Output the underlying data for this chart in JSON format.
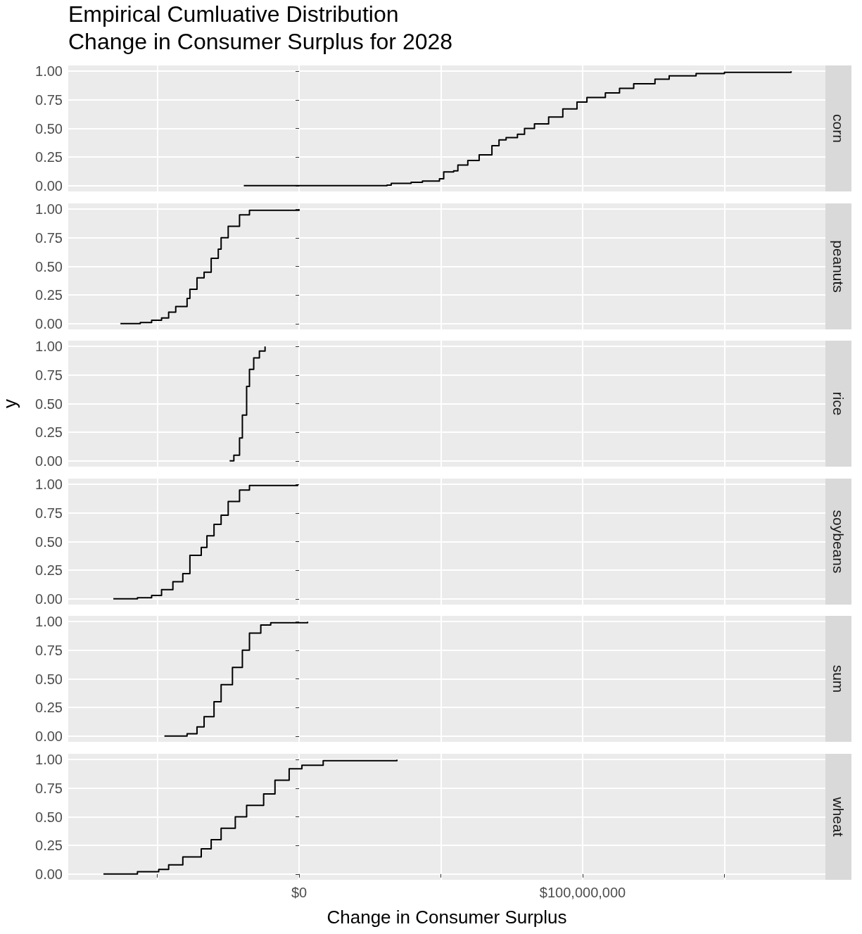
{
  "chart_data": [
    {
      "type": "step",
      "title": "corn",
      "annotations": [
        "Empirical Cumluative Distribution",
        "Change in Consumer Surplus for 2028"
      ],
      "xlim": [
        -81400000,
        185600000
      ],
      "xticks": [
        {
          "value": -50000000,
          "label": null
        },
        {
          "value": 0,
          "label": null
        },
        {
          "value": 50000000,
          "label": null
        },
        {
          "value": 100000000,
          "label": null
        },
        {
          "value": 150000000,
          "label": null
        }
      ],
      "ylim": [
        -0.05,
        1.05
      ],
      "yticks": [
        {
          "value": 0,
          "label": "0.00"
        },
        {
          "value": 0.25,
          "label": "0.25"
        },
        {
          "value": 0.5,
          "label": "0.50"
        },
        {
          "value": 0.75,
          "label": "0.75"
        },
        {
          "value": 1,
          "label": "1.00"
        }
      ],
      "grid": true,
      "tick_labels": "y",
      "series": [
        {
          "color": "#000000",
          "x": [
            -19500000,
            31000000,
            32500000,
            39500000,
            43500000,
            49500000,
            51000000,
            54500000,
            56000000,
            59500000,
            63500000,
            68000000,
            70500000,
            73000000,
            77000000,
            79500000,
            83000000,
            88000000,
            93000000,
            98000000,
            101500000,
            108000000,
            113000000,
            118000000,
            125500000,
            130500000,
            140000000,
            150000000,
            173500000
          ],
          "values": [
            0,
            0.005,
            0.02,
            0.03,
            0.04,
            0.06,
            0.12,
            0.13,
            0.18,
            0.22,
            0.27,
            0.35,
            0.4,
            0.42,
            0.45,
            0.5,
            0.54,
            0.6,
            0.67,
            0.73,
            0.77,
            0.81,
            0.85,
            0.89,
            0.93,
            0.96,
            0.98,
            0.99,
            1
          ]
        }
      ]
    },
    {
      "type": "step",
      "title": "peanuts",
      "xlim": [
        -81400000,
        185600000
      ],
      "xticks": [
        {
          "value": -50000000,
          "label": null
        },
        {
          "value": 0,
          "label": null
        },
        {
          "value": 50000000,
          "label": null
        },
        {
          "value": 100000000,
          "label": null
        },
        {
          "value": 150000000,
          "label": null
        }
      ],
      "ylim": [
        -0.05,
        1.05
      ],
      "yticks": [
        {
          "value": 0,
          "label": "0.00"
        },
        {
          "value": 0.25,
          "label": "0.25"
        },
        {
          "value": 0.5,
          "label": "0.50"
        },
        {
          "value": 0.75,
          "label": "0.75"
        },
        {
          "value": 1,
          "label": "1.00"
        }
      ],
      "grid": true,
      "tick_labels": "y",
      "series": [
        {
          "color": "#000000",
          "x": [
            -63000000,
            -56000000,
            -52000000,
            -48500000,
            -46000000,
            -43500000,
            -39500000,
            -38500000,
            -36000000,
            -33500000,
            -31000000,
            -28500000,
            -27500000,
            -25000000,
            -21000000,
            -17500000,
            0
          ],
          "values": [
            0,
            0.01,
            0.03,
            0.05,
            0.1,
            0.15,
            0.22,
            0.3,
            0.4,
            0.45,
            0.57,
            0.65,
            0.75,
            0.85,
            0.95,
            0.99,
            1
          ]
        }
      ]
    },
    {
      "type": "step",
      "title": "rice",
      "ylabel": "y",
      "xlim": [
        -81400000,
        185600000
      ],
      "xticks": [
        {
          "value": -50000000,
          "label": null
        },
        {
          "value": 0,
          "label": null
        },
        {
          "value": 50000000,
          "label": null
        },
        {
          "value": 100000000,
          "label": null
        },
        {
          "value": 150000000,
          "label": null
        }
      ],
      "ylim": [
        -0.05,
        1.05
      ],
      "yticks": [
        {
          "value": 0,
          "label": "0.00"
        },
        {
          "value": 0.25,
          "label": "0.25"
        },
        {
          "value": 0.5,
          "label": "0.50"
        },
        {
          "value": 0.75,
          "label": "0.75"
        },
        {
          "value": 1,
          "label": "1.00"
        }
      ],
      "grid": true,
      "tick_labels": "y",
      "series": [
        {
          "color": "#000000",
          "x": [
            -24500000,
            -23000000,
            -21000000,
            -20000000,
            -18500000,
            -17500000,
            -16000000,
            -14000000,
            -12000000
          ],
          "values": [
            0,
            0.05,
            0.2,
            0.4,
            0.65,
            0.8,
            0.9,
            0.96,
            1
          ]
        }
      ]
    },
    {
      "type": "step",
      "title": "soybeans",
      "xlim": [
        -81400000,
        185600000
      ],
      "xticks": [
        {
          "value": -50000000,
          "label": null
        },
        {
          "value": 0,
          "label": null
        },
        {
          "value": 50000000,
          "label": null
        },
        {
          "value": 100000000,
          "label": null
        },
        {
          "value": 150000000,
          "label": null
        }
      ],
      "ylim": [
        -0.05,
        1.05
      ],
      "yticks": [
        {
          "value": 0,
          "label": "0.00"
        },
        {
          "value": 0.25,
          "label": "0.25"
        },
        {
          "value": 0.5,
          "label": "0.50"
        },
        {
          "value": 0.75,
          "label": "0.75"
        },
        {
          "value": 1,
          "label": "1.00"
        }
      ],
      "grid": true,
      "tick_labels": "y",
      "series": [
        {
          "color": "#000000",
          "x": [
            -65500000,
            -57000000,
            -52000000,
            -48500000,
            -44500000,
            -41000000,
            -38500000,
            -34500000,
            -32500000,
            -30000000,
            -27500000,
            -25000000,
            -21000000,
            -17500000,
            -500000
          ],
          "values": [
            0,
            0.01,
            0.03,
            0.08,
            0.15,
            0.22,
            0.38,
            0.45,
            0.55,
            0.65,
            0.73,
            0.85,
            0.95,
            0.99,
            1
          ]
        }
      ]
    },
    {
      "type": "step",
      "title": "sum",
      "xlim": [
        -81400000,
        185600000
      ],
      "xticks": [
        {
          "value": -50000000,
          "label": null
        },
        {
          "value": 0,
          "label": null
        },
        {
          "value": 50000000,
          "label": null
        },
        {
          "value": 100000000,
          "label": null
        },
        {
          "value": 150000000,
          "label": null
        }
      ],
      "ylim": [
        -0.05,
        1.05
      ],
      "yticks": [
        {
          "value": 0,
          "label": "0.00"
        },
        {
          "value": 0.25,
          "label": "0.25"
        },
        {
          "value": 0.5,
          "label": "0.50"
        },
        {
          "value": 0.75,
          "label": "0.75"
        },
        {
          "value": 1,
          "label": "1.00"
        }
      ],
      "grid": true,
      "tick_labels": "y",
      "series": [
        {
          "color": "#000000",
          "x": [
            -47500000,
            -39500000,
            -36000000,
            -33500000,
            -30000000,
            -27500000,
            -23500000,
            -20000000,
            -17500000,
            -13500000,
            -10000000,
            3000000
          ],
          "values": [
            0,
            0.02,
            0.08,
            0.17,
            0.3,
            0.45,
            0.6,
            0.75,
            0.9,
            0.97,
            0.99,
            1
          ]
        }
      ]
    },
    {
      "type": "step",
      "title": "wheat",
      "xlabel": "Change in Consumer Surplus",
      "xlim": [
        -81400000,
        185600000
      ],
      "xticks": [
        {
          "value": -50000000,
          "label": null
        },
        {
          "value": 0,
          "label": "$0"
        },
        {
          "value": 50000000,
          "label": null
        },
        {
          "value": 100000000,
          "label": "$100,000,000"
        },
        {
          "value": 150000000,
          "label": null
        }
      ],
      "ylim": [
        -0.05,
        1.05
      ],
      "yticks": [
        {
          "value": 0,
          "label": "0.00"
        },
        {
          "value": 0.25,
          "label": "0.25"
        },
        {
          "value": 0.5,
          "label": "0.50"
        },
        {
          "value": 0.75,
          "label": "0.75"
        },
        {
          "value": 1,
          "label": "1.00"
        }
      ],
      "grid": true,
      "series": [
        {
          "color": "#000000",
          "x": [
            -69000000,
            -57000000,
            -49500000,
            -46000000,
            -41000000,
            -34500000,
            -31000000,
            -27500000,
            -22500000,
            -18500000,
            -12500000,
            -8500000,
            -3500000,
            1000000,
            8500000,
            34500000
          ],
          "values": [
            0,
            0.02,
            0.04,
            0.08,
            0.15,
            0.22,
            0.3,
            0.4,
            0.5,
            0.6,
            0.7,
            0.82,
            0.92,
            0.95,
            0.99,
            1
          ]
        }
      ]
    }
  ]
}
